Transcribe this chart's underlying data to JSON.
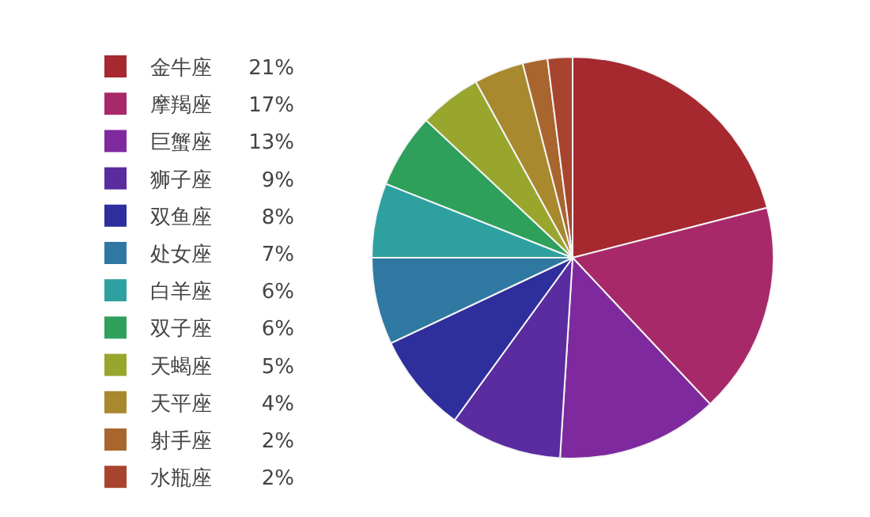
{
  "chart_data": {
    "type": "pie",
    "categories": [
      "金牛座",
      "摩羯座",
      "巨蟹座",
      "狮子座",
      "双鱼座",
      "处女座",
      "白羊座",
      "双子座",
      "天蝎座",
      "天平座",
      "射手座",
      "水瓶座"
    ],
    "values": [
      21,
      17,
      13,
      9,
      8,
      7,
      6,
      6,
      5,
      4,
      2,
      2
    ],
    "colors": [
      "#a5292f",
      "#a8296a",
      "#7e2a9e",
      "#5a2ca0",
      "#2e2f9c",
      "#2e78a2",
      "#2ea0a0",
      "#2ea05c",
      "#98a62e",
      "#a8892e",
      "#a8662e",
      "#a8442e"
    ],
    "value_labels": [
      "21%",
      "17%",
      "13%",
      "9%",
      "8%",
      "7%",
      "6%",
      "6%",
      "5%",
      "4%",
      "2%",
      "2%"
    ],
    "legend": "left"
  }
}
